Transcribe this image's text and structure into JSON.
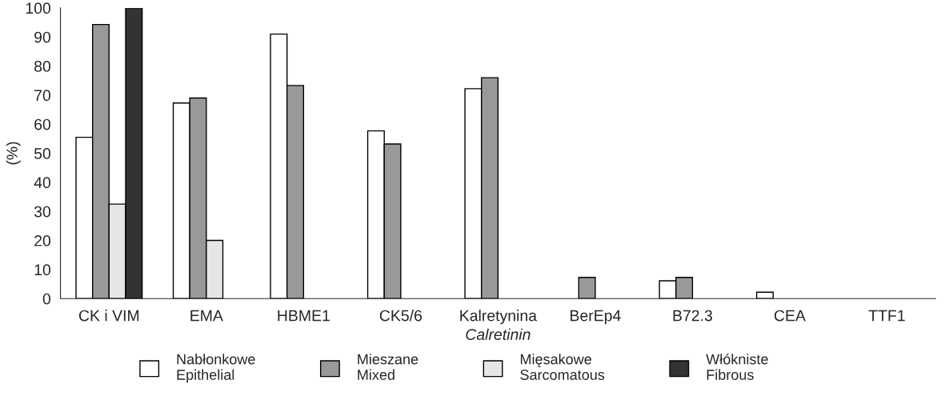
{
  "chart_data": {
    "type": "bar",
    "ylabel": "(%)",
    "categories": [
      "CK i VIM",
      "EMA",
      "HBME1",
      "CK5/6",
      "Kalretynina\nCalretinin",
      "BerEp4",
      "B72.3",
      "CEA",
      "TTF1"
    ],
    "series": [
      {
        "name": "Nabłonkowe\nEpithelial",
        "color": "#ffffff",
        "values": [
          55.5,
          67.3,
          91,
          57.7,
          72.2,
          0,
          6.1,
          2.2,
          0
        ]
      },
      {
        "name": "Mieszane\nMixed",
        "color": "#999999",
        "values": [
          94.3,
          69,
          73.3,
          53.2,
          76,
          7.3,
          7.3,
          0,
          0
        ]
      },
      {
        "name": "Mięsakowe\nSarcomatous",
        "color": "#e6e6e6",
        "values": [
          32.5,
          20,
          0,
          0,
          0,
          0,
          0,
          0,
          0
        ]
      },
      {
        "name": "Włókniste\nFibrous",
        "color": "#333333",
        "values": [
          100,
          0,
          0,
          0,
          0,
          0,
          0,
          0,
          0
        ]
      }
    ],
    "ylim": [
      0,
      100
    ],
    "yticks": [
      0,
      10,
      20,
      30,
      40,
      50,
      60,
      70,
      80,
      90,
      100
    ],
    "grid": false,
    "legend": "bottom"
  }
}
